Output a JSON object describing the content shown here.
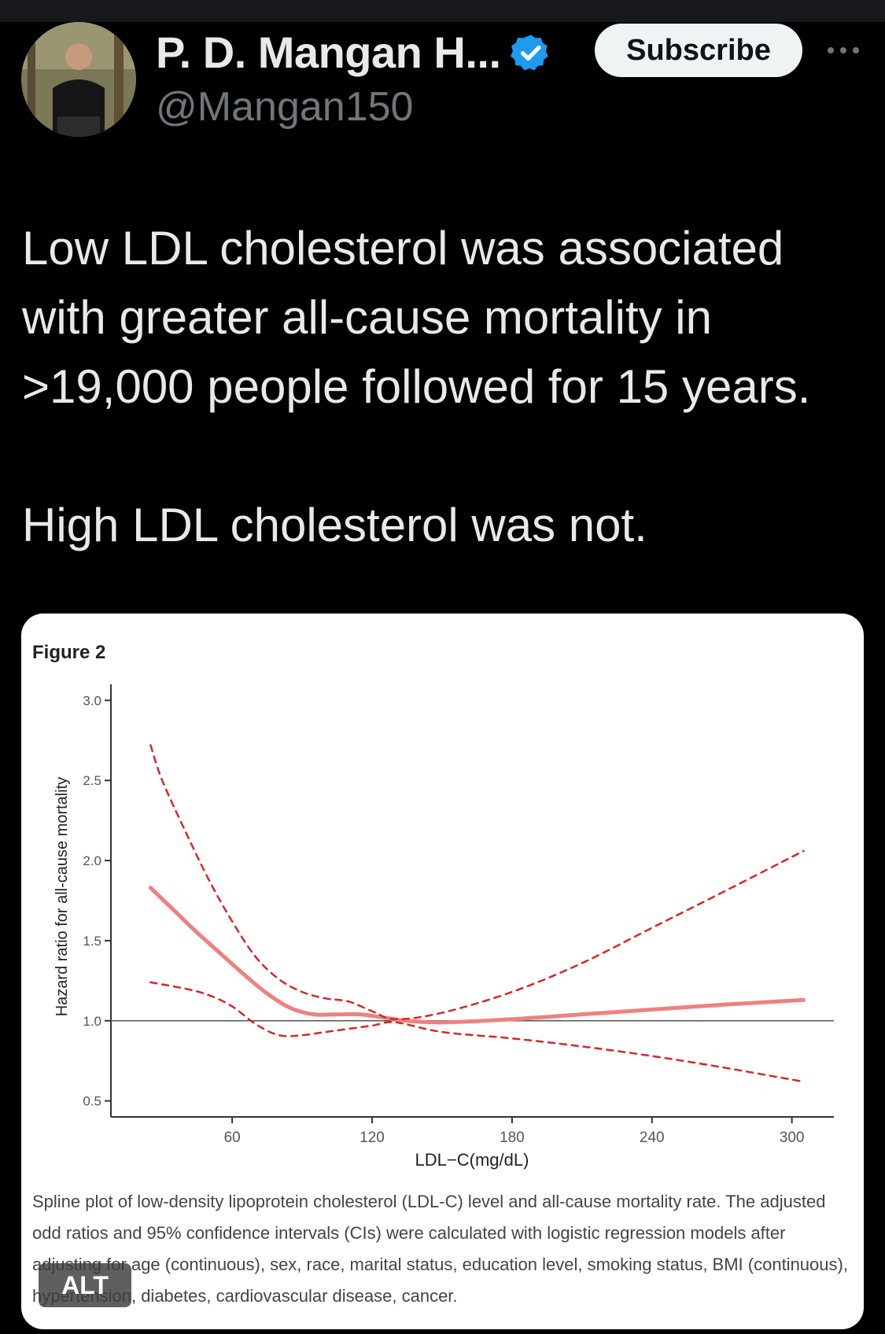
{
  "tweet": {
    "author_name": "P. D. Mangan H...",
    "handle": "@Mangan150",
    "subscribe_label": "Subscribe",
    "text_lines": [
      "Low LDL cholesterol was associated",
      "with greater all-cause mortality in",
      ">19,000 people followed for 15 years."
    ],
    "text_line2": "High LDL cholesterol was not.",
    "icons": {
      "verified": "verified-badge-icon",
      "more": "more-options-icon",
      "avatar": "profile-avatar"
    },
    "colors": {
      "verified": "#1d9bf0",
      "subscribe_bg": "#eff3f4"
    }
  },
  "figure": {
    "label": "Figure 2",
    "caption": "Spline plot of low-density lipoprotein cholesterol (LDL-C) level and all-cause mortality rate. The adjusted odd ratios and 95% confidence intervals (CIs) were calculated with logistic regression models after adjusting for age (continuous), sex, race, marital status, education level, smoking status, BMI (continuous), hypertension, diabetes, cardiovascular disease, cancer.",
    "alt_badge": "ALT"
  },
  "chart_data": {
    "type": "line",
    "xlabel": "LDL−C(mg/dL)",
    "ylabel": "Hazard ratio for all-cause mortality",
    "xlim": [
      8,
      318
    ],
    "ylim": [
      0.4,
      3.1
    ],
    "x_ticks": [
      60,
      120,
      180,
      240,
      300
    ],
    "y_ticks": [
      0.5,
      1.0,
      1.5,
      2.0,
      2.5,
      3.0
    ],
    "y_tick_labels": [
      "0.5",
      "1.0",
      "1.5",
      "2.0",
      "2.5",
      "3.0"
    ],
    "reference_line": 1.0,
    "line_color": "#f08080",
    "ci_color": "#d62728",
    "series": [
      {
        "style": "solid",
        "x": [
          25,
          35,
          45,
          55,
          65,
          75,
          85,
          95,
          105,
          115,
          125,
          135,
          150,
          180,
          210,
          240,
          270,
          305
        ],
        "y": [
          1.83,
          1.69,
          1.55,
          1.42,
          1.29,
          1.17,
          1.08,
          1.04,
          1.04,
          1.04,
          1.02,
          1.0,
          0.99,
          1.01,
          1.04,
          1.07,
          1.1,
          1.13
        ]
      },
      {
        "style": "dashed",
        "x": [
          25,
          30,
          40,
          50,
          60,
          70,
          80,
          90,
          100,
          110,
          120,
          130,
          150,
          180,
          210,
          240,
          270,
          305
        ],
        "y": [
          2.72,
          2.5,
          2.18,
          1.88,
          1.62,
          1.4,
          1.26,
          1.18,
          1.14,
          1.12,
          1.06,
          1.01,
          1.05,
          1.18,
          1.36,
          1.58,
          1.8,
          2.06
        ]
      },
      {
        "style": "dashed",
        "x": [
          25,
          40,
          50,
          60,
          70,
          80,
          90,
          100,
          110,
          120,
          130,
          150,
          180,
          210,
          240,
          270,
          305
        ],
        "y": [
          1.24,
          1.2,
          1.16,
          1.09,
          0.98,
          0.91,
          0.91,
          0.93,
          0.95,
          0.97,
          0.99,
          0.93,
          0.89,
          0.84,
          0.78,
          0.71,
          0.62
        ]
      }
    ]
  }
}
